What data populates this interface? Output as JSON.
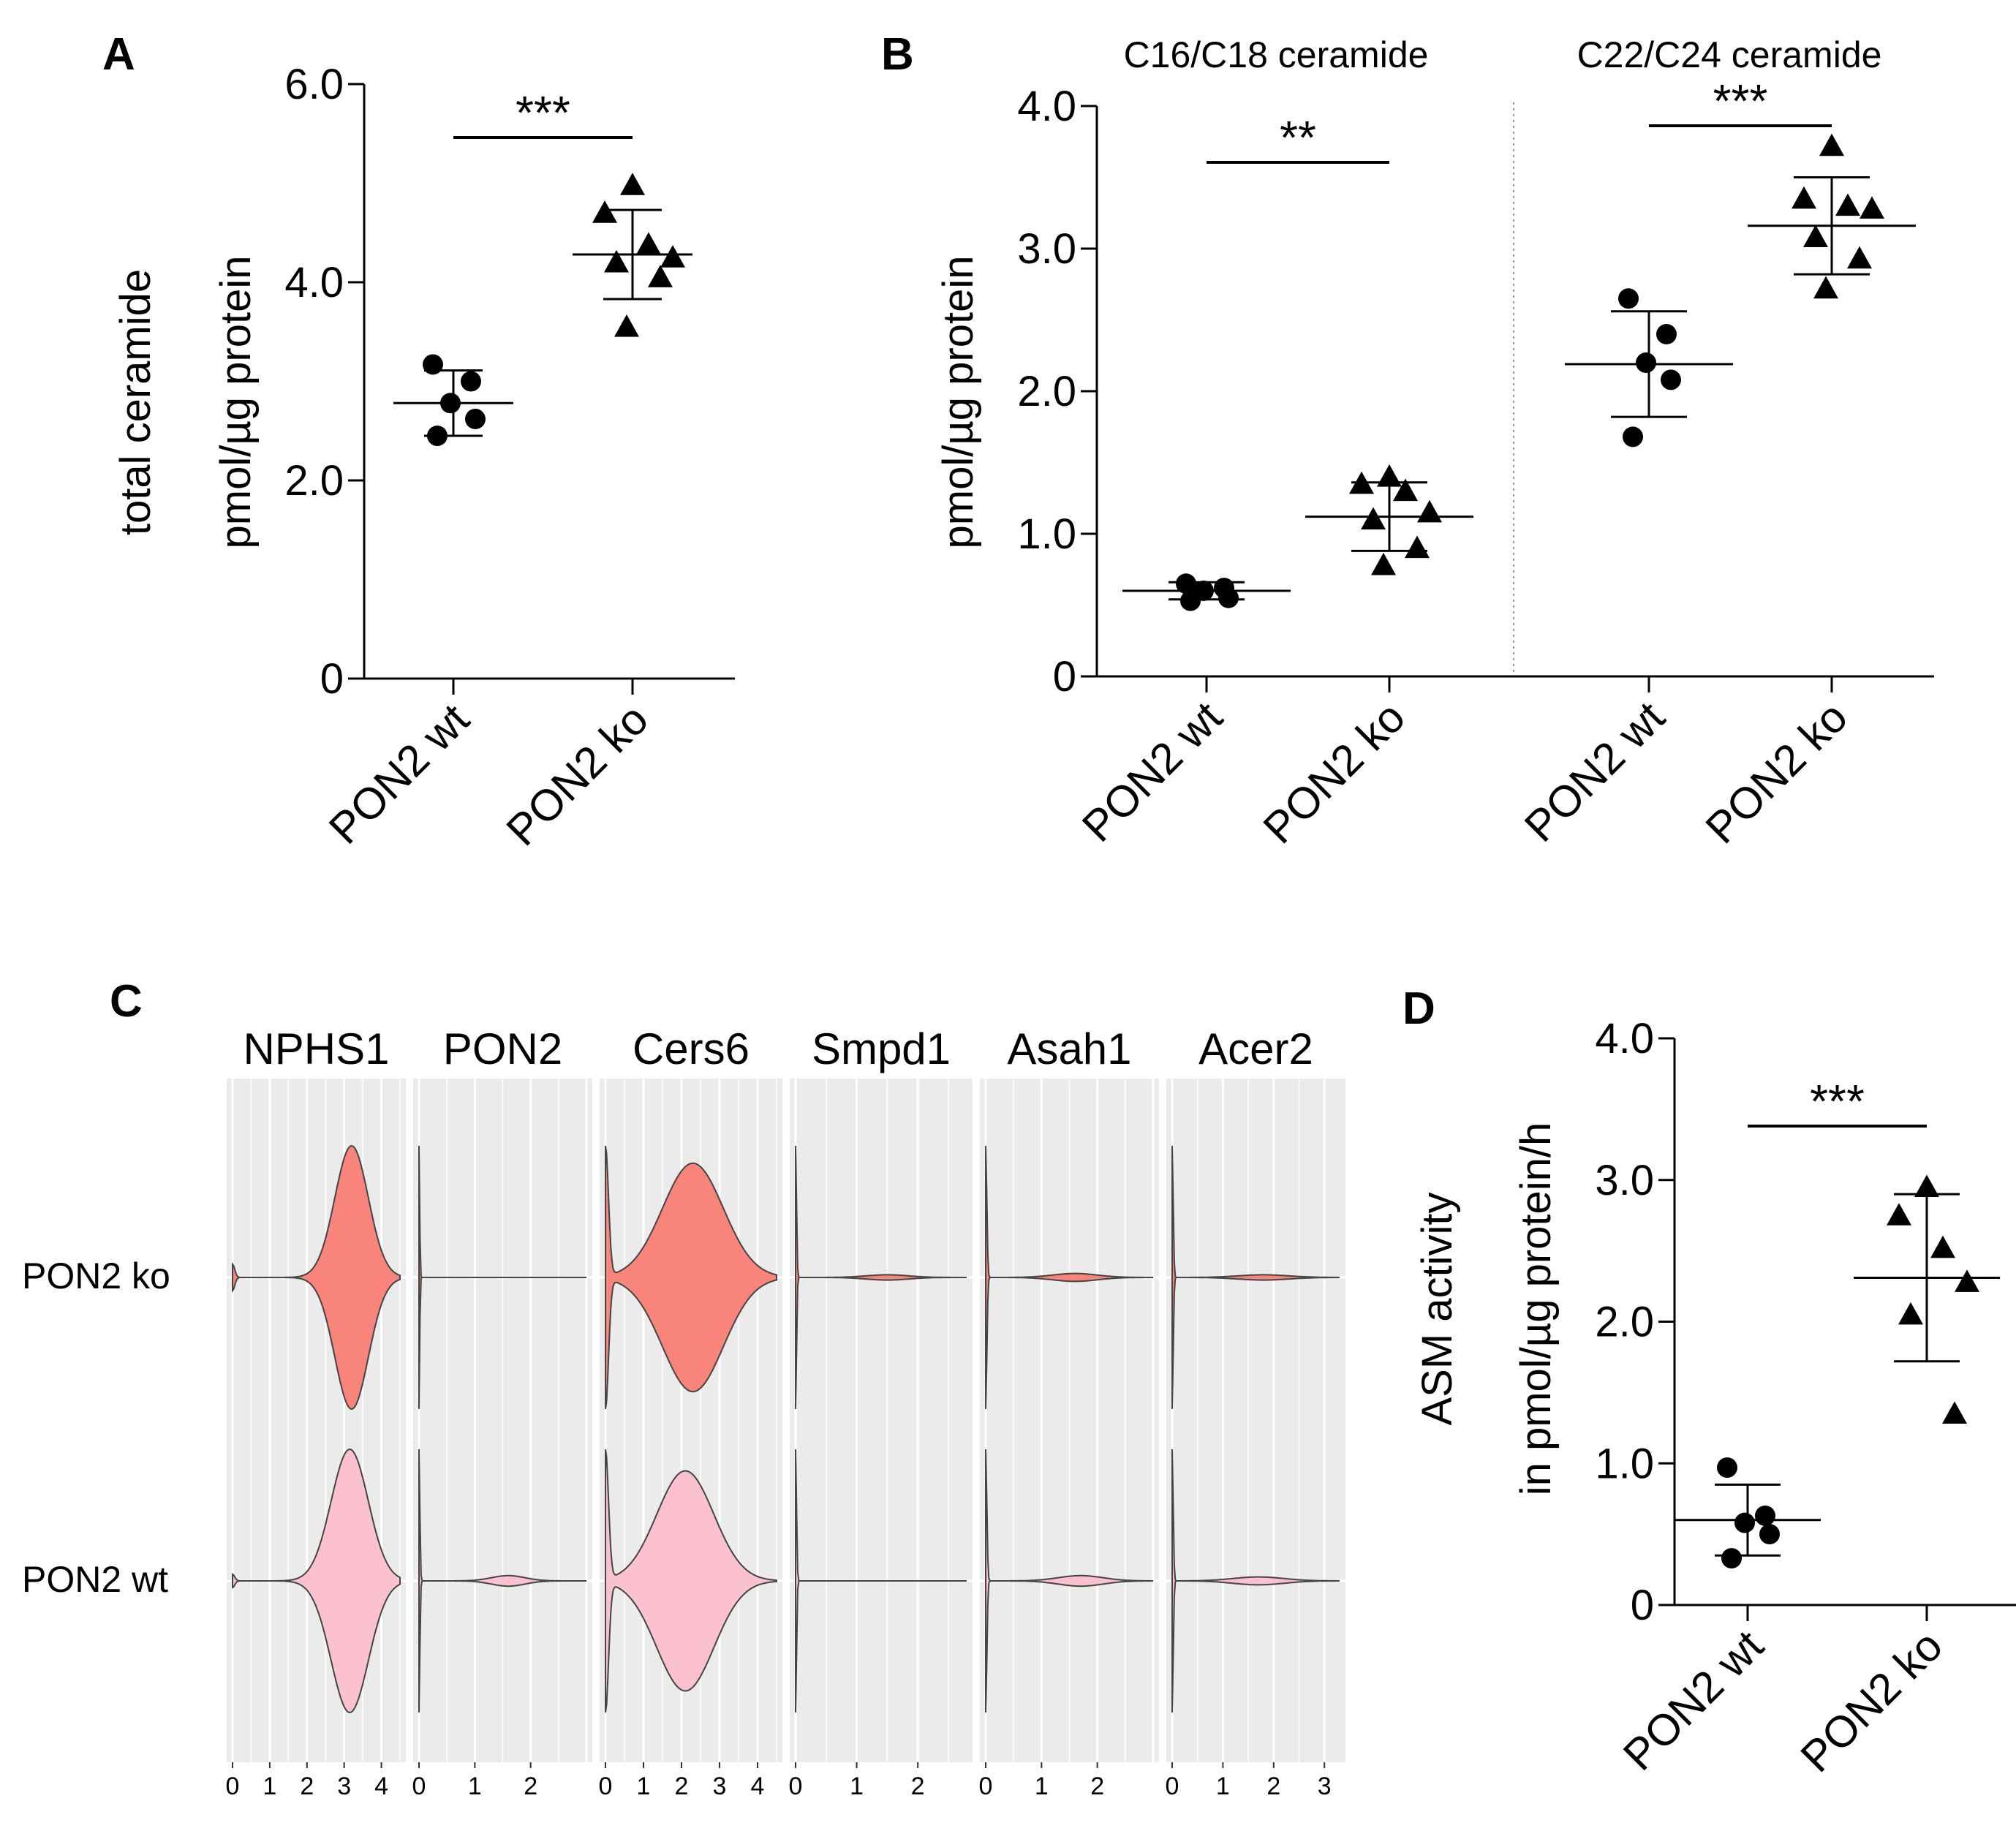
{
  "chart_data": [
    {
      "panel": "A",
      "type": "scatter",
      "ylabel": [
        "total ceramide",
        "pmol/µg protein"
      ],
      "ylim": [
        0,
        6.0
      ],
      "yticks": [
        {
          "v": 0,
          "label": "0"
        },
        {
          "v": 2.0,
          "label": "2.0"
        },
        {
          "v": 4.0,
          "label": "4.0"
        },
        {
          "v": 6.0,
          "label": "6.0"
        }
      ],
      "groups": [
        {
          "label": "PON2 wt",
          "marker": "circle",
          "mean": 2.78,
          "sd": 0.33,
          "points": [
            3.17,
            3.0,
            2.78,
            2.62,
            2.45
          ]
        },
        {
          "label": "PON2 ko",
          "marker": "triangle",
          "mean": 4.28,
          "sd": 0.45,
          "points": [
            4.98,
            4.7,
            4.38,
            4.25,
            4.2,
            4.05,
            3.55
          ]
        }
      ],
      "significance": [
        {
          "from": 0,
          "to": 1,
          "label": "***"
        }
      ]
    },
    {
      "panel": "B",
      "type": "scatter",
      "ylabel": [
        "pmol/µg protein"
      ],
      "ylim": [
        0,
        4.0
      ],
      "yticks": [
        {
          "v": 0,
          "label": "0"
        },
        {
          "v": 1.0,
          "label": "1.0"
        },
        {
          "v": 2.0,
          "label": "2.0"
        },
        {
          "v": 3.0,
          "label": "3.0"
        },
        {
          "v": 4.0,
          "label": "4.0"
        }
      ],
      "subgroups": [
        "C16/C18 ceramide",
        "C22/C24 ceramide"
      ],
      "groups": [
        {
          "label": "PON2 wt",
          "subgroup": 0,
          "marker": "circle",
          "mean": 0.6,
          "sd": 0.06,
          "points": [
            0.65,
            0.62,
            0.6,
            0.55,
            0.53
          ]
        },
        {
          "label": "PON2 ko",
          "subgroup": 0,
          "marker": "triangle",
          "mean": 1.12,
          "sd": 0.24,
          "points": [
            1.4,
            1.35,
            1.3,
            1.15,
            1.1,
            0.9,
            0.78
          ]
        },
        {
          "label": "PON2 wt",
          "subgroup": 1,
          "marker": "circle",
          "mean": 2.19,
          "sd": 0.37,
          "points": [
            2.65,
            2.4,
            2.2,
            2.08,
            1.68
          ]
        },
        {
          "label": "PON2 ko",
          "subgroup": 1,
          "marker": "triangle",
          "mean": 3.16,
          "sd": 0.34,
          "points": [
            3.72,
            3.35,
            3.3,
            3.28,
            3.08,
            2.93,
            2.72
          ]
        }
      ],
      "significance": [
        {
          "from": 0,
          "to": 1,
          "label": "**"
        },
        {
          "from": 2,
          "to": 3,
          "label": "***"
        }
      ]
    },
    {
      "panel": "C",
      "type": "violin",
      "rows": [
        "PON2 ko",
        "PON2 wt"
      ],
      "colors": {
        "PON2 ko": "#f8847c",
        "PON2 wt": "#fbc1cf"
      },
      "genes": [
        {
          "name": "NPHS1",
          "xmax": 4.5,
          "ticks": [
            "0",
            "1",
            "2",
            "3",
            "4"
          ],
          "tickvals": [
            0,
            1,
            2,
            3,
            4
          ],
          "components": {
            "PON2 ko": [
              {
                "mu": 0,
                "w": 0.06,
                "amp": 0.1
              },
              {
                "mu": 3.2,
                "w": 0.45,
                "amp": 1.0
              }
            ],
            "PON2 wt": [
              {
                "mu": 0,
                "w": 0.06,
                "amp": 0.05
              },
              {
                "mu": 3.15,
                "w": 0.5,
                "amp": 1.0
              }
            ]
          }
        },
        {
          "name": "PON2",
          "xmax": 3.0,
          "ticks": [
            "0",
            "1",
            "2"
          ],
          "tickvals": [
            0,
            1,
            2
          ],
          "components": {
            "PON2 ko": [
              {
                "mu": 0,
                "w": 0.012,
                "amp": 1.0
              }
            ],
            "PON2 wt": [
              {
                "mu": 0,
                "w": 0.015,
                "amp": 1.0
              },
              {
                "mu": 1.6,
                "w": 0.3,
                "amp": 0.04
              }
            ]
          }
        },
        {
          "name": "Cers6",
          "xmax": 4.5,
          "ticks": [
            "0",
            "1",
            "2",
            "3",
            "4"
          ],
          "tickvals": [
            0,
            1,
            2,
            3,
            4
          ],
          "components": {
            "PON2 ko": [
              {
                "mu": 0,
                "w": 0.08,
                "amp": 1.0
              },
              {
                "mu": 2.3,
                "w": 0.8,
                "amp": 0.88
              }
            ],
            "PON2 wt": [
              {
                "mu": 0,
                "w": 0.08,
                "amp": 1.0
              },
              {
                "mu": 2.1,
                "w": 0.75,
                "amp": 0.85
              }
            ]
          }
        },
        {
          "name": "Smpd1",
          "xmax": 2.8,
          "ticks": [
            "0",
            "1",
            "2"
          ],
          "tickvals": [
            0,
            1,
            2
          ],
          "components": {
            "PON2 ko": [
              {
                "mu": 0,
                "w": 0.015,
                "amp": 1.0
              },
              {
                "mu": 1.5,
                "w": 0.35,
                "amp": 0.02
              }
            ],
            "PON2 wt": [
              {
                "mu": 0,
                "w": 0.015,
                "amp": 1.0
              }
            ]
          }
        },
        {
          "name": "Asah1",
          "xmax": 3.0,
          "ticks": [
            "0",
            "1",
            "2"
          ],
          "tickvals": [
            0,
            1,
            2
          ],
          "components": {
            "PON2 ko": [
              {
                "mu": 0,
                "w": 0.02,
                "amp": 1.0
              },
              {
                "mu": 1.6,
                "w": 0.4,
                "amp": 0.03
              }
            ],
            "PON2 wt": [
              {
                "mu": 0,
                "w": 0.02,
                "amp": 1.0
              },
              {
                "mu": 1.7,
                "w": 0.4,
                "amp": 0.04
              }
            ]
          }
        },
        {
          "name": "Acer2",
          "xmax": 3.3,
          "ticks": [
            "0",
            "1",
            "2",
            "3"
          ],
          "tickvals": [
            0,
            1,
            2,
            3
          ],
          "components": {
            "PON2 ko": [
              {
                "mu": 0,
                "w": 0.02,
                "amp": 1.0
              },
              {
                "mu": 1.8,
                "w": 0.5,
                "amp": 0.02
              }
            ],
            "PON2 wt": [
              {
                "mu": 0,
                "w": 0.02,
                "amp": 1.0
              },
              {
                "mu": 1.7,
                "w": 0.5,
                "amp": 0.03
              }
            ]
          }
        }
      ]
    },
    {
      "panel": "D",
      "type": "scatter",
      "ylabel": [
        "ASM activity",
        "in pmol/µg protein/h"
      ],
      "ylim": [
        0,
        4.0
      ],
      "yticks": [
        {
          "v": 0,
          "label": "0"
        },
        {
          "v": 1.0,
          "label": "1.0"
        },
        {
          "v": 2.0,
          "label": "2.0"
        },
        {
          "v": 3.0,
          "label": "3.0"
        },
        {
          "v": 4.0,
          "label": "4.0"
        }
      ],
      "groups": [
        {
          "label": "PON2 wt",
          "marker": "circle",
          "mean": 0.6,
          "sd": 0.25,
          "points": [
            0.97,
            0.63,
            0.58,
            0.5,
            0.33
          ]
        },
        {
          "label": "PON2 ko",
          "marker": "triangle",
          "mean": 2.31,
          "sd": 0.59,
          "points": [
            2.95,
            2.75,
            2.52,
            2.28,
            2.05,
            1.35
          ]
        }
      ],
      "significance": [
        {
          "from": 0,
          "to": 1,
          "label": "***"
        }
      ]
    }
  ]
}
